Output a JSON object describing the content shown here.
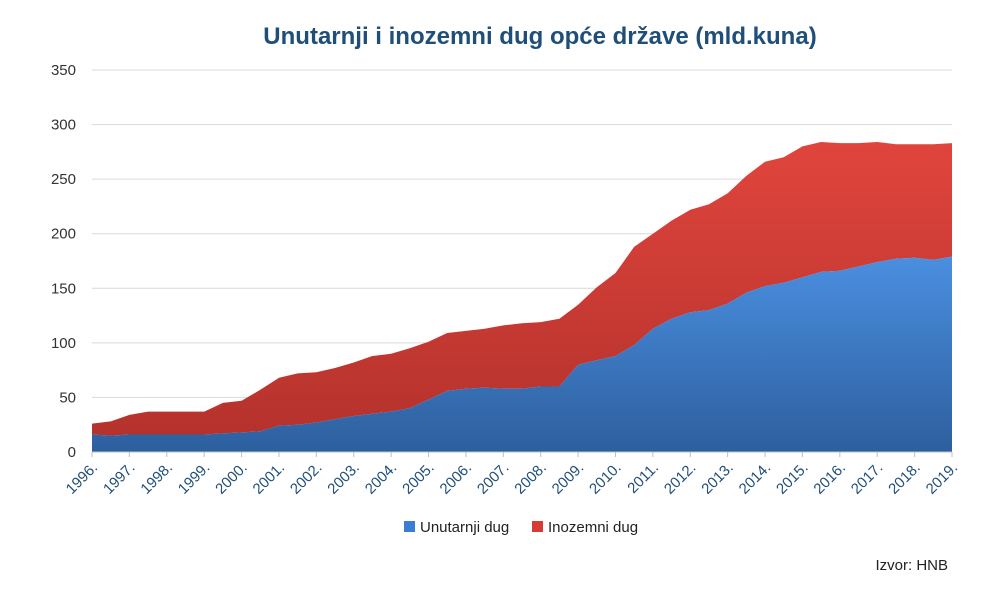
{
  "chart_data": {
    "type": "area",
    "stacked": true,
    "title": "Unutarnji i inozemni dug opće države (mld.kuna)",
    "xlabel": "",
    "ylabel": "",
    "ylim": [
      0,
      350
    ],
    "yticks": [
      "0",
      "50",
      "100",
      "150",
      "200",
      "250",
      "300",
      "350"
    ],
    "xticks": [
      "1996.",
      "1997.",
      "1998.",
      "1999.",
      "2000.",
      "2001.",
      "2002.",
      "2003.",
      "2004.",
      "2005.",
      "2006.",
      "2007.",
      "2008.",
      "2009.",
      "2010.",
      "2011.",
      "2012.",
      "2013.",
      "2014.",
      "2015.",
      "2016.",
      "2017.",
      "2018.",
      "2019."
    ],
    "grid": true,
    "legend": "bottom",
    "source": "Izvor: HNB",
    "x": [
      1996.0,
      1996.5,
      1997.0,
      1997.5,
      1998.0,
      1998.5,
      1999.0,
      1999.5,
      2000.0,
      2000.5,
      2001.0,
      2001.5,
      2002.0,
      2002.5,
      2003.0,
      2003.5,
      2004.0,
      2004.5,
      2005.0,
      2005.5,
      2006.0,
      2006.5,
      2007.0,
      2007.5,
      2008.0,
      2008.5,
      2009.0,
      2009.5,
      2010.0,
      2010.5,
      2011.0,
      2011.5,
      2012.0,
      2012.5,
      2013.0,
      2013.5,
      2014.0,
      2014.5,
      2015.0,
      2015.5,
      2016.0,
      2016.5,
      2017.0,
      2017.5,
      2018.0,
      2018.5,
      2019.0
    ],
    "series": [
      {
        "name": "Unutarnji dug",
        "color": "#3a7bd5",
        "values": [
          16,
          15,
          16,
          16,
          16,
          16,
          16,
          17,
          18,
          19,
          24,
          25,
          27,
          30,
          33,
          35,
          37,
          40,
          48,
          56,
          58,
          59,
          58,
          58,
          60,
          60,
          80,
          84,
          88,
          98,
          113,
          122,
          128,
          130,
          136,
          146,
          152,
          155,
          160,
          165,
          166,
          170,
          174,
          177,
          178,
          176,
          179
        ]
      },
      {
        "name": "Inozemni dug",
        "color": "#d63c35",
        "values": [
          10,
          13,
          18,
          21,
          21,
          21,
          21,
          28,
          29,
          38,
          44,
          47,
          46,
          47,
          49,
          53,
          53,
          55,
          53,
          53,
          53,
          54,
          58,
          60,
          59,
          62,
          55,
          67,
          76,
          90,
          87,
          90,
          94,
          97,
          101,
          107,
          114,
          115,
          120,
          119,
          117,
          113,
          110,
          105,
          104,
          106,
          104
        ]
      }
    ]
  }
}
